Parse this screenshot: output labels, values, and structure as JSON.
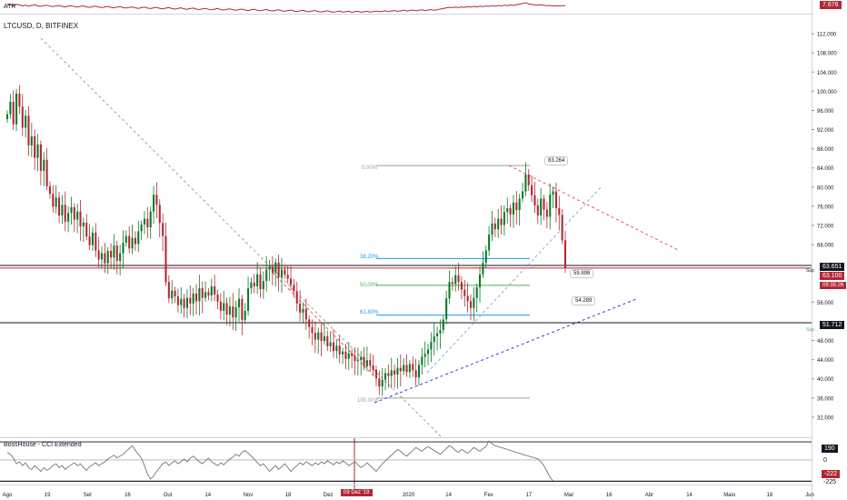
{
  "symbol_title": "LTCUSD, D, BITFINEX",
  "atr": {
    "label": "ATR",
    "value": "7.676"
  },
  "cci": {
    "label": "BossHouse - CCI Extended",
    "levels": [
      "190",
      "0",
      "-222",
      "-225"
    ]
  },
  "price_badges": [
    {
      "text": "63.651",
      "color": "#131722"
    },
    {
      "text": "63.100",
      "color": "#b22833"
    },
    {
      "text": "09:35:26",
      "color": "#b22833"
    },
    {
      "text": "51.712",
      "color": "#131722"
    }
  ],
  "sup_labels": [
    "Sup",
    "Sup"
  ],
  "crosshair_date": "09 Dez '19",
  "fib": {
    "levels": [
      {
        "label": "0,00%",
        "color": "#9e9e9e"
      },
      {
        "label": "38,20%",
        "color": "#2196f3"
      },
      {
        "label": "50,00%",
        "color": "#4caf50"
      },
      {
        "label": "61,80%",
        "color": "#2196f3"
      },
      {
        "label": "100,00%",
        "color": "#9e9e9e"
      }
    ]
  },
  "callouts": [
    "83.264",
    "59.898",
    "54.289"
  ],
  "chart_data": {
    "type": "candlestick",
    "symbol": "LTCUSD",
    "interval": "D",
    "exchange": "BITFINEX",
    "y_ticks": [
      "112.000",
      "108.000",
      "104.000",
      "100.000",
      "96.000",
      "92.000",
      "88.000",
      "84.000",
      "80.000",
      "76.000",
      "72.000",
      "68.000",
      "56.000",
      "48.000",
      "44.000",
      "40.000",
      "36.000",
      "32.000"
    ],
    "x_ticks": [
      "Ago",
      "19",
      "Set",
      "16",
      "Out",
      "14",
      "Nov",
      "18",
      "Dez",
      "16",
      "2020",
      "14",
      "Fev",
      "17",
      "Mar",
      "16",
      "Abr",
      "14",
      "Maio",
      "18",
      "Jun"
    ],
    "ylim": [
      28,
      116
    ],
    "last_price": 63.1,
    "horizontal_levels": [
      63.651,
      51.712
    ],
    "fib_prices": {
      "0": 84.5,
      "38.2": 65.1,
      "50": 59.5,
      "61.8": 53.3,
      "100": 36.0
    },
    "close_series": [
      95.2,
      97.8,
      93.1,
      99.5,
      96.8,
      92.4,
      94.9,
      88.7,
      90.6,
      86.1,
      88.9,
      83.4,
      85.7,
      80.2,
      78.6,
      75.9,
      77.8,
      74.1,
      76.3,
      72.8,
      74.6,
      75.8,
      73.2,
      74.9,
      71.8,
      72.6,
      69.7,
      67.9,
      70.5,
      66.8,
      64.9,
      66.2,
      64.1,
      66.7,
      65.3,
      67.8,
      64.6,
      66.2,
      68.4,
      69.8,
      67.2,
      69.4,
      68.1,
      70.8,
      72.2,
      73.4,
      71.6,
      74.9,
      78.4,
      76.3,
      72.5,
      69.8,
      60.2,
      56.8,
      58.4,
      57.2,
      55.4,
      56.7,
      54.8,
      56.9,
      55.7,
      57.8,
      56.2,
      58.9,
      56.9,
      58.1,
      57.4,
      59.3,
      57.6,
      56.1,
      54.2,
      55.8,
      53.4,
      55.1,
      52.8,
      54.9,
      56.7,
      52.3,
      54.2,
      58.9,
      60.1,
      59.3,
      61.8,
      58.7,
      60.4,
      62.8,
      63.4,
      62.1,
      64.3,
      61.2,
      62.8,
      61.7,
      60.9,
      59.6,
      58.3,
      55.7,
      53.8,
      54.6,
      52.4,
      50.8,
      49.6,
      48.2,
      49.7,
      47.9,
      48.9,
      46.8,
      47.6,
      45.8,
      46.9,
      45.1,
      45.7,
      44.2,
      45.3,
      44.8,
      43.7,
      43.9,
      44.6,
      42.6,
      43.9,
      42.8,
      41.9,
      40.1,
      38.4,
      39.8,
      41.2,
      40.6,
      41.8,
      40.9,
      42.3,
      41.6,
      42.9,
      41.4,
      43.1,
      41.8,
      40.3,
      42.9,
      44.6,
      45.2,
      46.1,
      47.7,
      48.9,
      49.5,
      50.2,
      52.4,
      56.8,
      60.2,
      59.8,
      61.6,
      60.2,
      58.6,
      57.3,
      56.2,
      54.8,
      56.9,
      59.1,
      61.8,
      64.2,
      66.8,
      70.1,
      72.4,
      71.2,
      73.4,
      72.1,
      74.8,
      75.6,
      74.3,
      76.8,
      75.2,
      77.6,
      79.1,
      82.6,
      80.4,
      78.3,
      76.2,
      74.1,
      77.6,
      75.3,
      73.8,
      78.4,
      79.1,
      75.6,
      74.2,
      68.9,
      63.1
    ],
    "atr_series": [
      7.9,
      8.1,
      7.7,
      8.2,
      8.0,
      7.6,
      7.9,
      7.5,
      7.8,
      8.0,
      7.6,
      7.4,
      7.7,
      7.9,
      7.5,
      7.3,
      7.6,
      7.8,
      7.4,
      7.2,
      7.5,
      7.7,
      7.3,
      7.1,
      7.4,
      7.6,
      7.2,
      7.0,
      7.3,
      7.5,
      7.1,
      6.9,
      7.2,
      7.4,
      7.0,
      6.8,
      7.1,
      7.3,
      6.9,
      6.7,
      7.0,
      7.2,
      6.8,
      6.6,
      6.9,
      7.1,
      6.7,
      6.5,
      6.8,
      7.0,
      6.6,
      6.4,
      6.7,
      6.9,
      6.5,
      6.3,
      6.6,
      6.8,
      6.4,
      6.2,
      6.5,
      6.7,
      6.3,
      6.1,
      6.4,
      6.6,
      6.2,
      6.0,
      6.3,
      6.5,
      6.1,
      5.9,
      6.2,
      6.4,
      6.0,
      5.8,
      6.1,
      6.3,
      5.9,
      5.7,
      6.0,
      6.2,
      5.8,
      5.6,
      5.9,
      6.1,
      5.7,
      5.5,
      5.8,
      6.0,
      5.6,
      5.4,
      5.7,
      5.9,
      5.5,
      5.3,
      5.6,
      5.8,
      5.4,
      5.2,
      5.5,
      5.7,
      5.3,
      5.1,
      5.4,
      5.6,
      5.2,
      5.0,
      5.3,
      5.5,
      5.1,
      5.2,
      5.4,
      5.0,
      5.2,
      5.4,
      5.0,
      5.2,
      5.4,
      5.1,
      5.3,
      5.5,
      5.2,
      5.4,
      5.6,
      5.3,
      5.5,
      5.7,
      5.4,
      5.6,
      5.8,
      5.5,
      5.7,
      5.9,
      5.6,
      5.8,
      6.0,
      5.7,
      5.9,
      6.1,
      5.8,
      6.0,
      6.3,
      6.5,
      6.8,
      7.0,
      6.9,
      7.1,
      6.9,
      7.2,
      7.0,
      7.3,
      7.1,
      7.4,
      7.2,
      7.5,
      7.3,
      7.6,
      7.4,
      7.7,
      7.5,
      7.8,
      7.6,
      7.9,
      7.7,
      8.0,
      7.8,
      8.1,
      8.3,
      8.6,
      8.9,
      8.4,
      8.2,
      8.0,
      7.9,
      8.1,
      7.9,
      7.7,
      7.8,
      7.6,
      7.7,
      7.6,
      7.7,
      7.676
    ],
    "cci_series": [
      80,
      60,
      20,
      -40,
      -20,
      -60,
      -30,
      -80,
      -100,
      -60,
      -90,
      -120,
      -80,
      -110,
      -90,
      -60,
      -40,
      -80,
      -60,
      -100,
      -70,
      -50,
      -30,
      -60,
      -40,
      -80,
      -110,
      -70,
      -50,
      -30,
      -60,
      -40,
      -20,
      10,
      30,
      50,
      20,
      40,
      60,
      90,
      120,
      150,
      100,
      60,
      20,
      -60,
      -150,
      -200,
      -170,
      -120,
      -80,
      -40,
      -20,
      -60,
      -30,
      -10,
      -40,
      -20,
      10,
      -20,
      20,
      40,
      10,
      -20,
      -40,
      -10,
      20,
      -20,
      -40,
      -60,
      -30,
      -50,
      -20,
      10,
      30,
      60,
      40,
      80,
      100,
      70,
      40,
      10,
      -30,
      -60,
      -40,
      -80,
      -120,
      -90,
      -60,
      -100,
      -70,
      -40,
      -80,
      -120,
      -90,
      -60,
      -30,
      -50,
      -20,
      -40,
      -60,
      -30,
      -50,
      -20,
      -40,
      -10,
      -30,
      -50,
      -20,
      -40,
      -10,
      -30,
      -60,
      -40,
      -20,
      -50,
      -80,
      -60,
      -30,
      -60,
      -90,
      -120,
      -80,
      -40,
      -10,
      20,
      50,
      80,
      110,
      90,
      60,
      40,
      70,
      100,
      130,
      110,
      90,
      120,
      140,
      120,
      100,
      80,
      60,
      90,
      120,
      150,
      130,
      100,
      80,
      110,
      90,
      70,
      100,
      130,
      110,
      90,
      120,
      140,
      200,
      170,
      150,
      140,
      130,
      120,
      110,
      100,
      90,
      80,
      70,
      60,
      50,
      40,
      30,
      20,
      10,
      -20,
      -60,
      -120,
      -180,
      -222
    ]
  }
}
